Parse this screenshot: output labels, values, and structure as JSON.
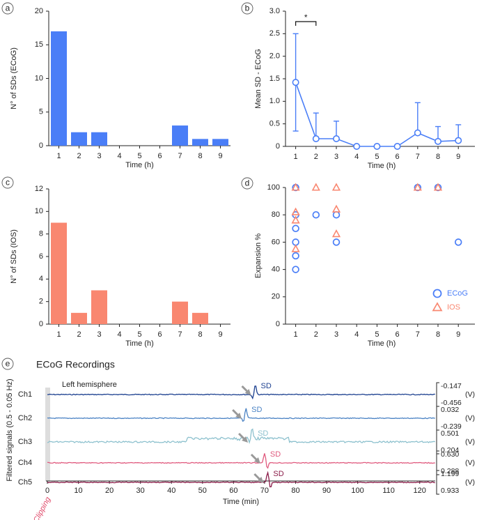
{
  "colors": {
    "blue": "#4a7ef7",
    "orange": "#f98770",
    "ch1": "#1b3f8f",
    "ch2": "#4a82c4",
    "ch3": "#8dc1ce",
    "ch4": "#e05a7e",
    "ch5": "#8a1b48",
    "clip": "#e04a6a",
    "axis": "#222222"
  },
  "chart_data": [
    {
      "panel": "a",
      "type": "bar",
      "categories": [
        "1",
        "2",
        "3",
        "4",
        "5",
        "6",
        "7",
        "8",
        "9"
      ],
      "values": [
        17,
        2,
        2,
        0,
        0,
        0,
        3,
        1,
        1
      ],
      "xlabel": "Time (h)",
      "ylabel": "N° of SDs (ECoG)",
      "ylim": [
        0,
        20
      ],
      "yticks": [
        0,
        5,
        10,
        15,
        20
      ]
    },
    {
      "panel": "b",
      "type": "line",
      "x": [
        1,
        2,
        3,
        4,
        5,
        6,
        7,
        8,
        9
      ],
      "y": [
        1.42,
        0.17,
        0.17,
        0,
        0,
        0,
        0.3,
        0.11,
        0.13
      ],
      "err_upper": [
        2.5,
        0.74,
        0.56,
        0,
        0,
        0,
        0.97,
        0.44,
        0.48
      ],
      "err_lower": [
        0.34,
        0.17,
        0.17,
        0,
        0,
        0,
        0.3,
        0.11,
        0.13
      ],
      "xlabel": "Time (h)",
      "ylabel": "Mean SD - ECoG",
      "ylim": [
        0,
        3.0
      ],
      "yticks": [
        "0",
        "0.5",
        "1.0",
        "1.5",
        "2.0",
        "2.5",
        "3.0"
      ],
      "xticks": [
        "1",
        "2",
        "3",
        "4",
        "5",
        "6",
        "7",
        "8",
        "9"
      ],
      "significance": {
        "from": 1,
        "to": 2,
        "label": "*"
      }
    },
    {
      "panel": "c",
      "type": "bar",
      "categories": [
        "1",
        "2",
        "3",
        "4",
        "5",
        "6",
        "7",
        "8",
        "9"
      ],
      "values": [
        9,
        1,
        3,
        0,
        0,
        0,
        2,
        1,
        0
      ],
      "xlabel": "Time (h)",
      "ylabel": "N° of SDs (IOS)",
      "ylim": [
        0,
        12
      ],
      "yticks": [
        0,
        2,
        4,
        6,
        8,
        10,
        12
      ]
    },
    {
      "panel": "d",
      "type": "scatter",
      "xlabel": "Time (h)",
      "ylabel": "Expansion %",
      "ylim": [
        0,
        100
      ],
      "yticks": [
        0,
        20,
        40,
        60,
        80,
        100
      ],
      "xticks": [
        "1",
        "2",
        "3",
        "4",
        "5",
        "6",
        "7",
        "8",
        "9"
      ],
      "series": [
        {
          "name": "ECoG",
          "marker": "circle",
          "points": [
            [
              1,
              100
            ],
            [
              1,
              80
            ],
            [
              1,
              70
            ],
            [
              1,
              60
            ],
            [
              1,
              50
            ],
            [
              1,
              40
            ],
            [
              2,
              80
            ],
            [
              3,
              80
            ],
            [
              3,
              60
            ],
            [
              7,
              100
            ],
            [
              8,
              100
            ],
            [
              9,
              60
            ]
          ]
        },
        {
          "name": "IOS",
          "marker": "triangle",
          "points": [
            [
              1,
              100
            ],
            [
              1,
              82
            ],
            [
              1,
              76
            ],
            [
              1,
              55
            ],
            [
              2,
              100
            ],
            [
              3,
              100
            ],
            [
              3,
              84
            ],
            [
              3,
              66
            ],
            [
              7,
              100
            ],
            [
              8,
              100
            ]
          ]
        }
      ]
    },
    {
      "panel": "e",
      "type": "line",
      "title": "ECoG Recordings",
      "annotation": "Left hemisphere",
      "xlabel": "Time (min)",
      "ylabel": "Filtered signals (0.5 - 0.05 Hz)",
      "xlim": [
        0,
        125
      ],
      "xticks": [
        0,
        10,
        20,
        30,
        40,
        50,
        60,
        70,
        80,
        90,
        100,
        110,
        120
      ],
      "clipping_label": "Clipping",
      "unit_label": "(V)",
      "channels": [
        {
          "name": "Ch1",
          "sd_label": "SD",
          "sd_time": 67,
          "scale_top": "-0.147",
          "scale_bottom": "-0.456"
        },
        {
          "name": "Ch2",
          "sd_label": "SD",
          "sd_time": 64,
          "scale_top": "0.032",
          "scale_bottom": "-0.239"
        },
        {
          "name": "Ch3",
          "sd_label": "SD",
          "sd_time": 66,
          "scale_top": "0.501",
          "scale_bottom": "0.204"
        },
        {
          "name": "Ch4",
          "sd_label": "SD",
          "sd_time": 70,
          "scale_top": "0.630",
          "scale_bottom": "0.288"
        },
        {
          "name": "Ch5",
          "sd_label": "SD",
          "sd_time": 71,
          "scale_top": "1.199",
          "scale_bottom": "0.933"
        }
      ]
    }
  ],
  "panel_labels": [
    "a",
    "b",
    "c",
    "d",
    "e"
  ]
}
